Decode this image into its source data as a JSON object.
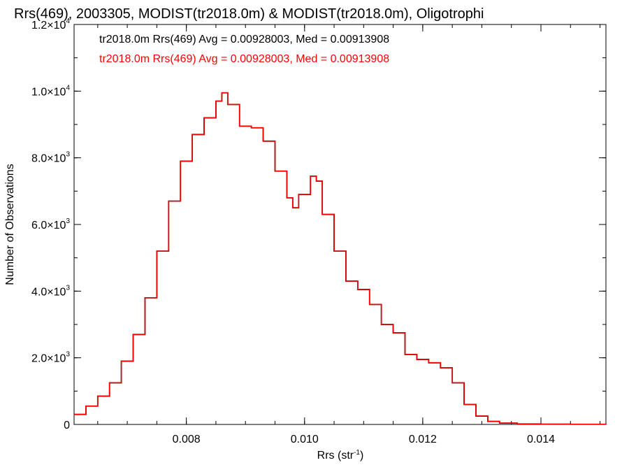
{
  "chart_data": {
    "type": "line",
    "title": "Rrs(469), 2003305, MODIST(tr2018.0m) & MODIST(tr2018.0m), Oligotrophi",
    "xlabel": "Rrs (str",
    "xlabel_sup": "-1",
    "xlabel_end": ")",
    "ylabel": "Number of Observations",
    "xlim": [
      0.0061,
      0.0151
    ],
    "ylim": [
      0,
      12000
    ],
    "grid": false,
    "x_ticks": [
      {
        "value": 0.008,
        "label": "0.008"
      },
      {
        "value": 0.01,
        "label": "0.010"
      },
      {
        "value": 0.012,
        "label": "0.012"
      },
      {
        "value": 0.014,
        "label": "0.014"
      }
    ],
    "y_ticks": [
      {
        "value": 0,
        "mant": "0",
        "exp": ""
      },
      {
        "value": 2000,
        "mant": "2.0×10",
        "exp": "3"
      },
      {
        "value": 4000,
        "mant": "4.0×10",
        "exp": "3"
      },
      {
        "value": 6000,
        "mant": "6.0×10",
        "exp": "3"
      },
      {
        "value": 8000,
        "mant": "8.0×10",
        "exp": "3"
      },
      {
        "value": 10000,
        "mant": "1.0×10",
        "exp": "4"
      },
      {
        "value": 12000,
        "mant": "1.2×10",
        "exp": "4"
      }
    ],
    "annotations": [
      {
        "text": "tr2018.0m Rrs(469) Avg = 0.00928003, Med = 0.00913908",
        "color": "#000000"
      },
      {
        "text": "tr2018.0m Rrs(469) Avg = 0.00928003, Med = 0.00913908",
        "color": "#ff0000"
      }
    ],
    "series": [
      {
        "color": "#000000",
        "style": "step",
        "x": [
          0.0061,
          0.0063,
          0.0065,
          0.0067,
          0.0069,
          0.0071,
          0.0073,
          0.0075,
          0.0077,
          0.0079,
          0.0081,
          0.0083,
          0.0085,
          0.0086,
          0.0087,
          0.0089,
          0.0091,
          0.0093,
          0.0095,
          0.0097,
          0.0098,
          0.0099,
          0.0101,
          0.0102,
          0.0103,
          0.0105,
          0.0107,
          0.0109,
          0.0111,
          0.0113,
          0.0115,
          0.0117,
          0.0119,
          0.0121,
          0.0123,
          0.0125,
          0.0127,
          0.0129,
          0.0131,
          0.0133,
          0.0136,
          0.014,
          0.0145,
          0.0151
        ],
        "y": [
          300,
          550,
          850,
          1250,
          1900,
          2700,
          3800,
          5200,
          6700,
          7900,
          8700,
          9200,
          9700,
          9950,
          9600,
          8950,
          8900,
          8500,
          7600,
          6800,
          6500,
          6900,
          7450,
          7300,
          6300,
          5200,
          4300,
          4050,
          3600,
          3000,
          2750,
          2100,
          1950,
          1850,
          1700,
          1250,
          600,
          250,
          90,
          40,
          15,
          8,
          5,
          3
        ]
      },
      {
        "color": "#ff0000",
        "style": "step",
        "x": [
          0.0061,
          0.0063,
          0.0065,
          0.0067,
          0.0069,
          0.0071,
          0.0073,
          0.0075,
          0.0077,
          0.0079,
          0.0081,
          0.0083,
          0.0085,
          0.0086,
          0.0087,
          0.0089,
          0.0091,
          0.0093,
          0.0095,
          0.0097,
          0.0098,
          0.0099,
          0.0101,
          0.0102,
          0.0103,
          0.0105,
          0.0107,
          0.0109,
          0.0111,
          0.0113,
          0.0115,
          0.0117,
          0.0119,
          0.0121,
          0.0123,
          0.0125,
          0.0127,
          0.0129,
          0.0131,
          0.0133,
          0.0136,
          0.014,
          0.0145,
          0.0151
        ],
        "y": [
          300,
          550,
          850,
          1250,
          1900,
          2700,
          3800,
          5200,
          6700,
          7900,
          8700,
          9200,
          9700,
          9950,
          9600,
          8950,
          8900,
          8500,
          7600,
          6800,
          6500,
          6900,
          7450,
          7300,
          6300,
          5200,
          4300,
          4050,
          3600,
          3000,
          2750,
          2100,
          1950,
          1850,
          1700,
          1250,
          600,
          250,
          90,
          40,
          15,
          8,
          5,
          3
        ]
      }
    ]
  }
}
